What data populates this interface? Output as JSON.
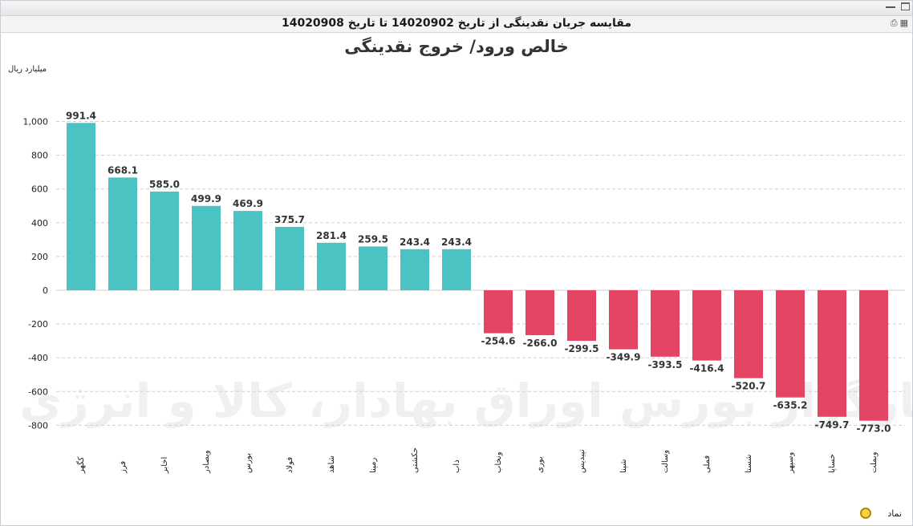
{
  "window": {
    "subtitle": "مقایسه جریان نقدینگی از تاریخ 14020902 تا تاریخ 14020908",
    "footer_label": "نماد"
  },
  "watermark": {
    "text": "کارگزار بورس اوراق بهادار، کالا و انرژی"
  },
  "colors": {
    "positive": "#4cc3c3",
    "negative": "#e54564",
    "grid": "#cfcfcf"
  },
  "icons": [
    "minimize-icon",
    "maximize-icon",
    "print-icon",
    "export-icon",
    "symbol-icon"
  ],
  "chart_data": {
    "type": "bar",
    "title": "خالص ورود/ خروج نقدینگی",
    "ylabel": "میلیارد ریال",
    "xlabel": "",
    "ylim": [
      -900,
      1100
    ],
    "yticks": [
      1000,
      800,
      600,
      400,
      200,
      0,
      -200,
      -400,
      -600,
      -800
    ],
    "ytick_labels": [
      "1,000",
      "800",
      "600",
      "400",
      "200",
      "0",
      "-200",
      "-400",
      "-600",
      "-800"
    ],
    "grid": true,
    "categories": [
      "کگهر",
      "فرز",
      "اخابر",
      "وبصادر",
      "بورس",
      "فولاد",
      "شاهد",
      "رمپنا",
      "حکشتی",
      "ذاب",
      "ونخاب",
      "بوری",
      "تپیدیس",
      "شپنا",
      "وسالت",
      "فملی",
      "شستا",
      "وسپهر",
      "خساپا",
      "وبملت"
    ],
    "values": [
      991.4,
      668.1,
      585.0,
      499.9,
      469.9,
      375.7,
      281.4,
      259.5,
      243.4,
      243.4,
      -254.6,
      -266.0,
      -299.5,
      -349.9,
      -393.5,
      -416.4,
      -520.7,
      -635.2,
      -749.7,
      -773.0
    ],
    "value_labels": [
      "991.4",
      "668.1",
      "585.0",
      "499.9",
      "469.9",
      "375.7",
      "281.4",
      "259.5",
      "243.4",
      "243.4",
      "-254.6",
      "-266.0",
      "-299.5",
      "-349.9",
      "-393.5",
      "-416.4",
      "-520.7",
      "-635.2",
      "-749.7",
      "-773.0"
    ]
  }
}
